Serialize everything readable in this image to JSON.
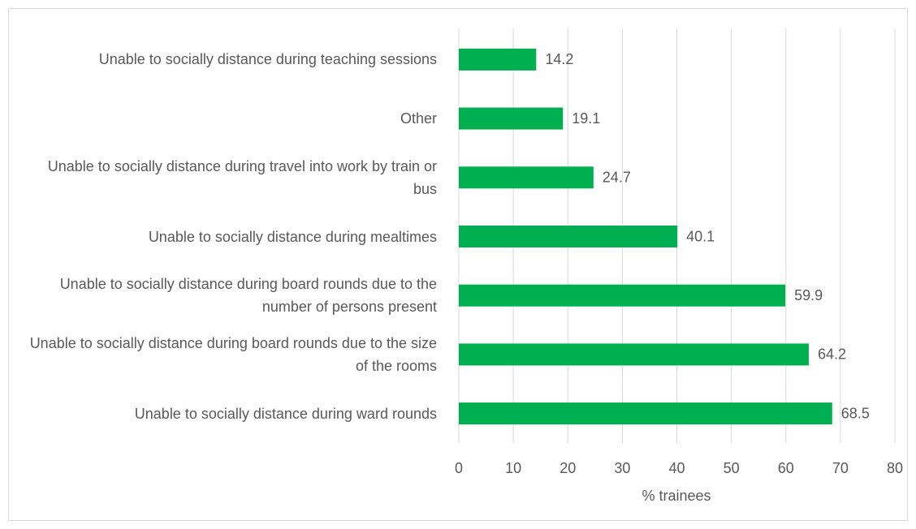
{
  "chart_data": {
    "type": "bar",
    "orientation": "horizontal",
    "categories": [
      "Unable to socially distance during teaching sessions",
      "Other",
      "Unable to socially distance during travel into work by train or bus",
      "Unable to socially distance during mealtimes",
      "Unable to socially distance during board rounds due to the number of persons present",
      "Unable to socially distance during board rounds due to the size of the rooms",
      "Unable to socially distance during ward rounds"
    ],
    "values": [
      14.2,
      19.1,
      24.7,
      40.1,
      59.9,
      64.2,
      68.5
    ],
    "color": "#00b050",
    "xlabel": "% trainees",
    "xlim": [
      0,
      80
    ],
    "xticks": [
      0,
      10,
      20,
      30,
      40,
      50,
      60,
      70,
      80
    ],
    "grid": true
  }
}
